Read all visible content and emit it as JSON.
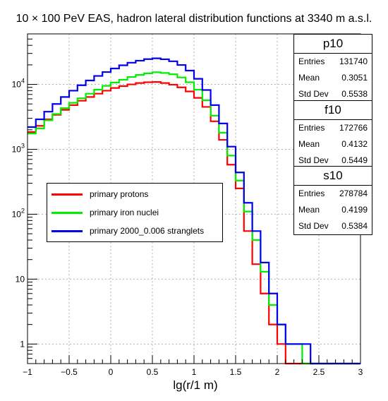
{
  "chart_data": {
    "type": "line",
    "title": "10 × 100 PeV EAS, hadron lateral distribution functions at 3340 m a.s.l.",
    "xlabel": "lg(r/1 m)",
    "ylabel": "",
    "xlim": [
      -1,
      3
    ],
    "ylim": [
      0.5,
      60000
    ],
    "yscale": "log",
    "grid": true,
    "x_ticks": [
      -1,
      -0.5,
      0,
      0.5,
      1,
      1.5,
      2,
      2.5,
      3
    ],
    "x_tick_labels": [
      "−1",
      "−0.5",
      "0",
      "0.5",
      "1",
      "1.5",
      "2",
      "2.5",
      "3"
    ],
    "y_ticks": [
      1,
      10,
      100,
      1000,
      10000
    ],
    "y_tick_labels": [
      {
        "base": "1",
        "exp": ""
      },
      {
        "base": "10",
        "exp": ""
      },
      {
        "base": "10",
        "exp": "2"
      },
      {
        "base": "10",
        "exp": "3"
      },
      {
        "base": "10",
        "exp": "4"
      }
    ],
    "bin_edges": [
      -1.0,
      -0.9,
      -0.8,
      -0.7,
      -0.6,
      -0.5,
      -0.4,
      -0.3,
      -0.2,
      -0.1,
      0.0,
      0.1,
      0.2,
      0.3,
      0.4,
      0.5,
      0.6,
      0.7,
      0.8,
      0.9,
      1.0,
      1.1,
      1.2,
      1.3,
      1.4,
      1.5,
      1.6,
      1.7,
      1.8,
      1.9,
      2.0,
      2.1,
      2.2,
      2.3,
      2.4,
      2.5,
      2.6,
      2.7,
      2.8,
      2.9,
      3.0
    ],
    "legend": {
      "placement": "center-left"
    },
    "series": [
      {
        "name": "primary protons",
        "color": "#ff0000",
        "values": [
          1850,
          2300,
          2900,
          3400,
          4050,
          4800,
          5600,
          6400,
          7200,
          8000,
          8800,
          9400,
          10000,
          10500,
          10800,
          10900,
          10500,
          9900,
          9000,
          7800,
          6200,
          4500,
          2700,
          1400,
          580,
          250,
          55,
          17,
          6,
          2,
          1,
          0,
          0,
          0,
          0,
          0,
          0,
          0,
          0,
          0
        ]
      },
      {
        "name": "primary iron nuclei",
        "color": "#00ee00",
        "values": [
          1750,
          2100,
          2800,
          3500,
          4300,
          5200,
          6100,
          7200,
          8300,
          9500,
          10700,
          11800,
          13000,
          14000,
          14800,
          15400,
          15000,
          14300,
          12800,
          10800,
          8300,
          5700,
          3300,
          1800,
          800,
          330,
          110,
          40,
          13,
          4,
          2,
          1,
          1,
          0,
          0,
          0,
          0,
          0,
          0,
          0
        ]
      },
      {
        "name": "primary 2000_0.006 stranglets",
        "color": "#0000ee",
        "values": [
          2200,
          2900,
          3800,
          5000,
          6400,
          8000,
          9700,
          11500,
          13500,
          15500,
          17600,
          19700,
          21600,
          23200,
          24500,
          25200,
          24400,
          22700,
          19900,
          16300,
          12200,
          8200,
          4800,
          2500,
          1100,
          440,
          150,
          55,
          18,
          6,
          2,
          1,
          1,
          1,
          0.5,
          0,
          0,
          0,
          0,
          0
        ]
      }
    ]
  },
  "stats": [
    {
      "name": "p10",
      "rows": [
        {
          "label": "Entries",
          "value": "131740"
        },
        {
          "label": "Mean",
          "value": "0.3051"
        },
        {
          "label": "Std Dev",
          "value": "0.5538"
        }
      ]
    },
    {
      "name": "f10",
      "rows": [
        {
          "label": "Entries",
          "value": "172766"
        },
        {
          "label": "Mean",
          "value": "0.4132"
        },
        {
          "label": "Std Dev",
          "value": "0.5449"
        }
      ]
    },
    {
      "name": "s10",
      "rows": [
        {
          "label": "Entries",
          "value": "278784"
        },
        {
          "label": "Mean",
          "value": "0.4199"
        },
        {
          "label": "Std Dev",
          "value": "0.5384"
        }
      ]
    }
  ]
}
